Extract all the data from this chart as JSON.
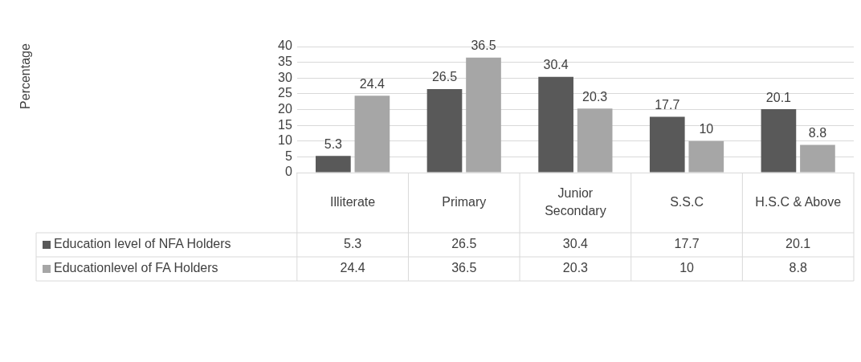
{
  "chart_data": {
    "type": "bar",
    "categories": [
      "Illiterate",
      "Primary",
      "Junior Secondary",
      "S.S.C",
      "H.S.C & Above"
    ],
    "series": [
      {
        "name": "Education level of NFA Holders",
        "color": "#595959",
        "values": [
          5.3,
          26.5,
          30.4,
          17.7,
          20.1
        ]
      },
      {
        "name": "Educationlevel of FA Holders",
        "color": "#a6a6a6",
        "values": [
          24.4,
          36.5,
          20.3,
          10,
          8.8
        ]
      }
    ],
    "annotations": [
      "Percentage",
      "5.3",
      "26.5",
      "30.4",
      "17.7",
      "20.1",
      "24.4",
      "36.5",
      "20.3",
      "10",
      "8.8"
    ],
    "ylim": [
      0,
      40
    ],
    "yticks": [
      0,
      5,
      10,
      15,
      20,
      25,
      30,
      35,
      40
    ],
    "grid": "y",
    "legend": "bottom",
    "data_labels": true
  }
}
